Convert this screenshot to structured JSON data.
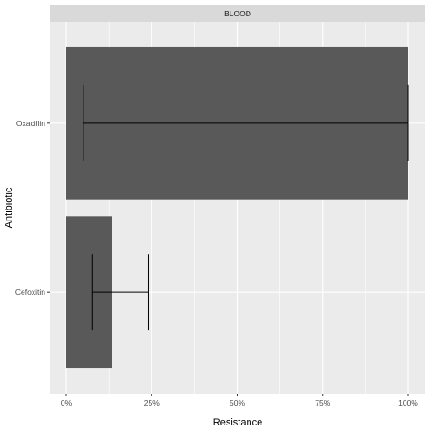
{
  "chart_data": {
    "type": "bar",
    "orientation": "horizontal",
    "facet": "BLOOD",
    "xlabel": "Resistance",
    "ylabel": "Antibiotic",
    "xlim": [
      -0.0,
      1.0
    ],
    "x_ticks": [
      0,
      0.25,
      0.5,
      0.75,
      1.0
    ],
    "x_tick_labels": [
      "0%",
      "25%",
      "50%",
      "75%",
      "100%"
    ],
    "categories": [
      "Oxacillin",
      "Cefoxitin"
    ],
    "values": [
      1.0,
      0.135
    ],
    "error_low": [
      0.05,
      0.075
    ],
    "error_high": [
      1.0,
      0.24
    ],
    "grid": true,
    "colors": {
      "bar": "#595959",
      "panel": "#ebebeb",
      "grid": "#ffffff",
      "strip": "#d9d9d9"
    }
  }
}
